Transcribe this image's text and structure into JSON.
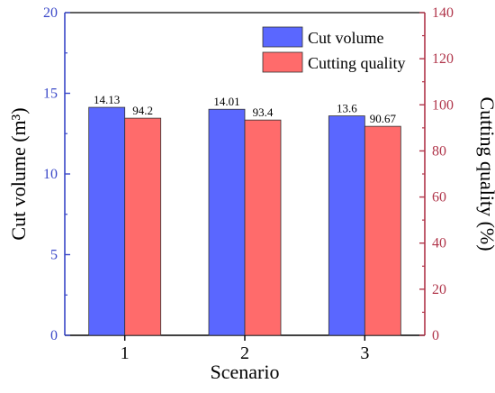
{
  "chart_data": {
    "type": "bar",
    "categories": [
      "1",
      "2",
      "3"
    ],
    "xlabel": "Scenario",
    "y_left": {
      "label": "Cut volume (m³)",
      "ylim": [
        0,
        20
      ],
      "ticks": [
        "0",
        "5",
        "10",
        "15",
        "20"
      ],
      "tick_values": [
        0,
        5,
        10,
        15,
        20
      ],
      "color": "#3a48c8"
    },
    "y_right": {
      "label": "Cutting quality (%)",
      "ylim": [
        0,
        140
      ],
      "ticks": [
        "0",
        "20",
        "40",
        "60",
        "80",
        "100",
        "120",
        "140"
      ],
      "tick_values": [
        0,
        20,
        40,
        60,
        80,
        100,
        120,
        140
      ],
      "color": "#b0354a"
    },
    "series": [
      {
        "name": "Cut volume",
        "axis": "left",
        "color": "#5a67ff",
        "values": [
          14.13,
          14.01,
          13.6
        ],
        "labels": [
          "14.13",
          "14.01",
          "13.6"
        ]
      },
      {
        "name": "Cutting quality",
        "axis": "right",
        "color": "#ff6b6b",
        "values": [
          94.2,
          93.4,
          90.67
        ],
        "labels": [
          "94.2",
          "93.4",
          "90.67"
        ]
      }
    ],
    "legend": "top-right",
    "grid": false
  }
}
